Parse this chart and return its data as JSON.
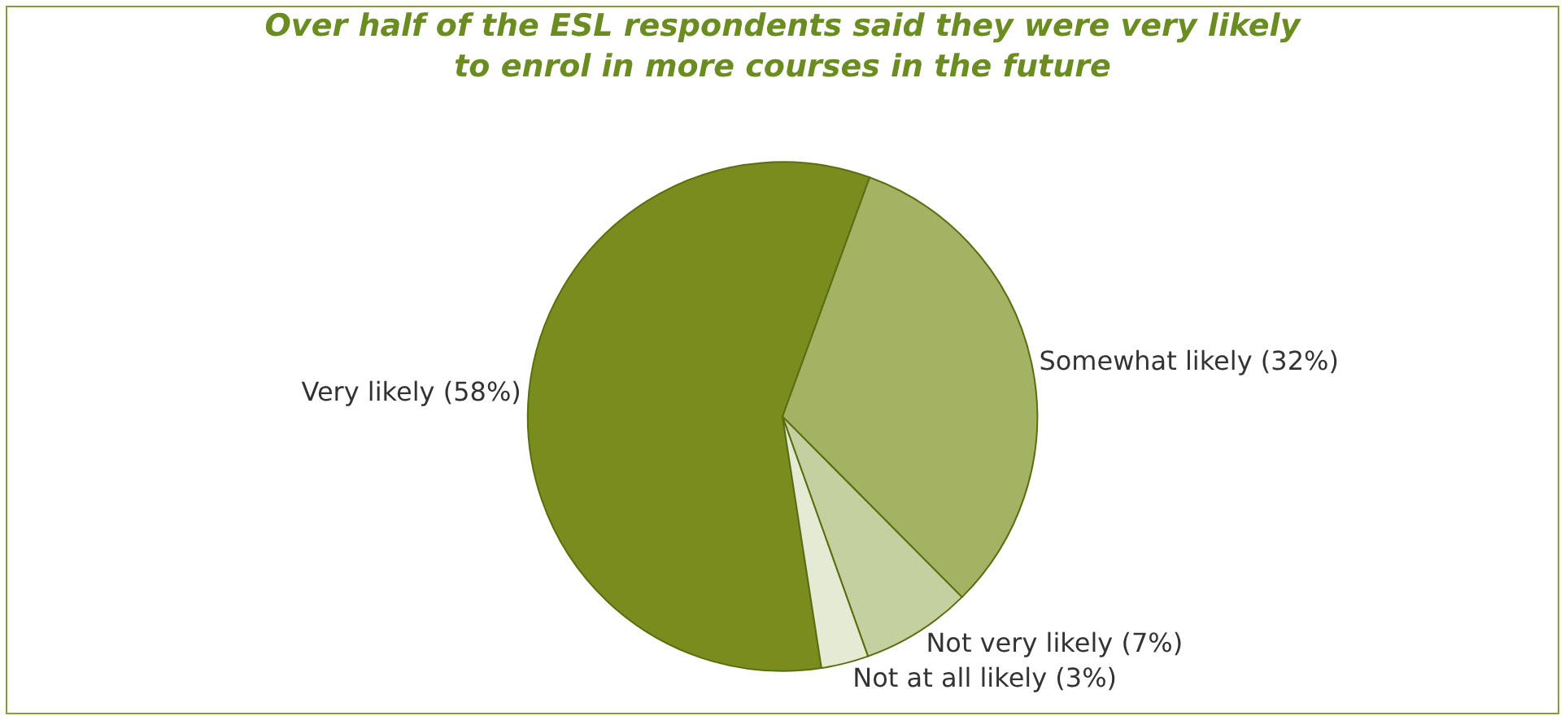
{
  "chart_data": {
    "type": "pie",
    "title": "Over half of the ESL respondents said they were very likely\nto enrol in more courses in the future",
    "categories": [
      "Very likely (58%)",
      "Somewhat likely (32%)",
      "Not very likely (7%)",
      "Not at all likely (3%)"
    ],
    "values": [
      58,
      32,
      7,
      3
    ],
    "colors": [
      "#7a8c1e",
      "#a3b263",
      "#c5d0a0",
      "#e4ead3"
    ],
    "legend": false
  }
}
